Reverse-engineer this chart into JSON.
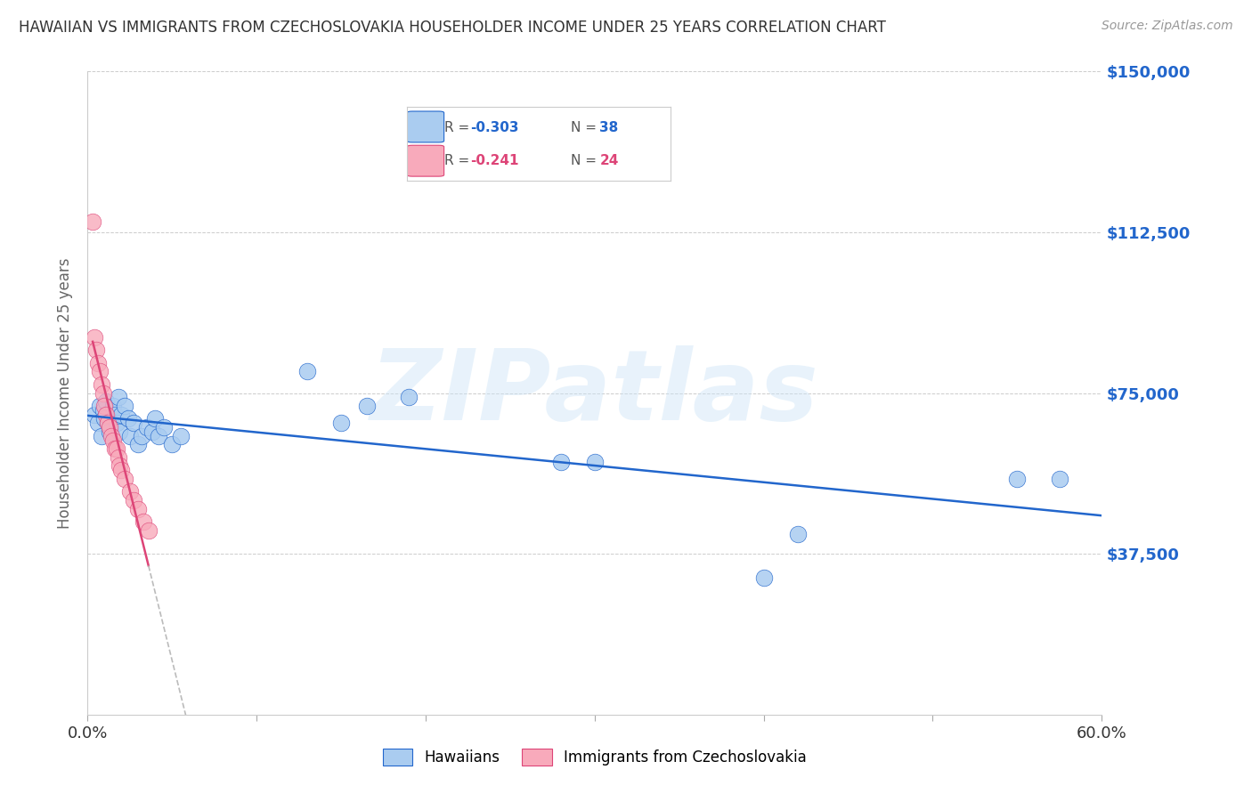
{
  "title": "HAWAIIAN VS IMMIGRANTS FROM CZECHOSLOVAKIA HOUSEHOLDER INCOME UNDER 25 YEARS CORRELATION CHART",
  "source": "Source: ZipAtlas.com",
  "ylabel": "Householder Income Under 25 years",
  "xlim": [
    0.0,
    0.6
  ],
  "ylim": [
    0,
    150000
  ],
  "yticks": [
    0,
    37500,
    75000,
    112500,
    150000
  ],
  "ytick_labels": [
    "",
    "$37,500",
    "$75,000",
    "$112,500",
    "$150,000"
  ],
  "xticks": [
    0.0,
    0.1,
    0.2,
    0.3,
    0.4,
    0.5,
    0.6
  ],
  "background_color": "#ffffff",
  "hawaiian_color": "#aaccf0",
  "czech_color": "#f8aabb",
  "line_color_hawaiian": "#2266cc",
  "line_color_czech": "#dd4477",
  "watermark_text": "ZIPatlas",
  "legend_r_hawaiian": "-0.303",
  "legend_n_hawaiian": "38",
  "legend_r_czech": "-0.241",
  "legend_n_czech": "24",
  "hawaiian_x": [
    0.004,
    0.006,
    0.007,
    0.008,
    0.009,
    0.01,
    0.011,
    0.012,
    0.013,
    0.015,
    0.016,
    0.017,
    0.018,
    0.019,
    0.02,
    0.022,
    0.024,
    0.025,
    0.027,
    0.03,
    0.032,
    0.035,
    0.038,
    0.04,
    0.042,
    0.045,
    0.05,
    0.055,
    0.13,
    0.15,
    0.165,
    0.19,
    0.28,
    0.3,
    0.4,
    0.42,
    0.55,
    0.575
  ],
  "hawaiian_y": [
    70000,
    68000,
    72000,
    65000,
    71000,
    69000,
    73000,
    68000,
    66000,
    72000,
    70000,
    68000,
    74000,
    66000,
    70000,
    72000,
    69000,
    65000,
    68000,
    63000,
    65000,
    67000,
    66000,
    69000,
    65000,
    67000,
    63000,
    65000,
    80000,
    68000,
    72000,
    74000,
    59000,
    59000,
    32000,
    42000,
    55000,
    55000
  ],
  "czech_x": [
    0.003,
    0.004,
    0.005,
    0.006,
    0.007,
    0.008,
    0.009,
    0.01,
    0.011,
    0.012,
    0.013,
    0.014,
    0.015,
    0.016,
    0.017,
    0.018,
    0.019,
    0.02,
    0.022,
    0.025,
    0.027,
    0.03,
    0.033,
    0.036
  ],
  "czech_y": [
    115000,
    88000,
    85000,
    82000,
    80000,
    77000,
    75000,
    72000,
    70000,
    68000,
    67000,
    65000,
    64000,
    62000,
    62000,
    60000,
    58000,
    57000,
    55000,
    52000,
    50000,
    48000,
    45000,
    43000
  ]
}
